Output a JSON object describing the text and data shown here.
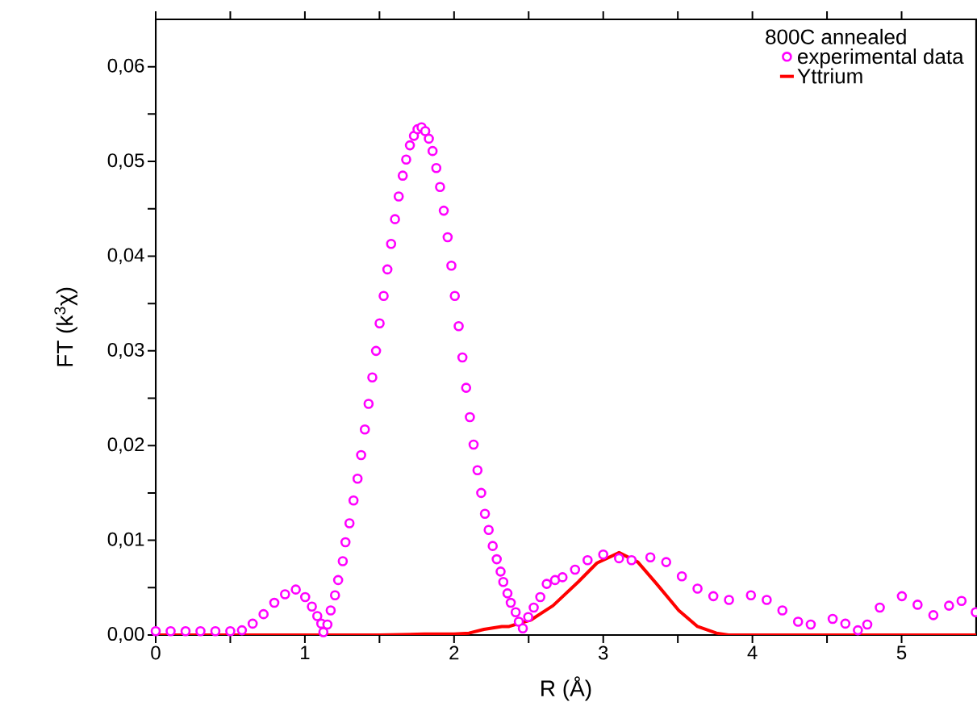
{
  "chart_data": {
    "type": "scatter",
    "xlabel": "R (Å)",
    "ylabel": "FT (k$^{3}$χ)",
    "legend_title": "800C annealed",
    "legend": "top right",
    "xlim": [
      0,
      5.5
    ],
    "ylim": [
      0,
      0.065
    ],
    "xticks": [
      {
        "value": 0,
        "label": "0"
      },
      {
        "value": 0.5,
        "label": null
      },
      {
        "value": 1,
        "label": "1"
      },
      {
        "value": 1.5,
        "label": null
      },
      {
        "value": 2,
        "label": "2"
      },
      {
        "value": 2.5,
        "label": null
      },
      {
        "value": 3,
        "label": "3"
      },
      {
        "value": 3.5,
        "label": null
      },
      {
        "value": 4,
        "label": "4"
      },
      {
        "value": 4.5,
        "label": null
      },
      {
        "value": 5,
        "label": "5"
      }
    ],
    "yticks": [
      {
        "value": 0,
        "label": "0,00"
      },
      {
        "value": 0.005,
        "label": null
      },
      {
        "value": 0.01,
        "label": "0,01"
      },
      {
        "value": 0.015,
        "label": null
      },
      {
        "value": 0.02,
        "label": "0,02"
      },
      {
        "value": 0.025,
        "label": null
      },
      {
        "value": 0.03,
        "label": "0,03"
      },
      {
        "value": 0.035,
        "label": null
      },
      {
        "value": 0.04,
        "label": "0,04"
      },
      {
        "value": 0.045,
        "label": null
      },
      {
        "value": 0.05,
        "label": "0,05"
      },
      {
        "value": 0.055,
        "label": null
      },
      {
        "value": 0.06,
        "label": "0,06"
      }
    ],
    "series": [
      {
        "name": "experimental data",
        "marker": "circle",
        "color": "#ff00ff",
        "x": [
          0,
          0.1,
          0.2,
          0.3,
          0.4,
          0.5,
          0.578,
          0.65,
          0.723,
          0.795,
          0.867,
          0.939,
          1.002,
          1.047,
          1.083,
          1.11,
          1.124,
          1.151,
          1.173,
          1.202,
          1.223,
          1.254,
          1.272,
          1.299,
          1.326,
          1.353,
          1.377,
          1.402,
          1.427,
          1.452,
          1.477,
          1.501,
          1.528,
          1.553,
          1.578,
          1.604,
          1.629,
          1.656,
          1.679,
          1.704,
          1.731,
          1.755,
          1.782,
          1.807,
          1.831,
          1.856,
          1.881,
          1.906,
          1.931,
          1.957,
          1.982,
          2.005,
          2.031,
          2.056,
          2.081,
          2.106,
          2.131,
          2.157,
          2.182,
          2.207,
          2.232,
          2.259,
          2.286,
          2.312,
          2.33,
          2.358,
          2.38,
          2.413,
          2.434,
          2.461,
          2.497,
          2.534,
          2.578,
          2.621,
          2.677,
          2.727,
          2.811,
          2.895,
          3.0,
          3.106,
          3.19,
          3.316,
          3.422,
          3.527,
          3.632,
          3.738,
          3.843,
          3.99,
          4.096,
          4.201,
          4.306,
          4.391,
          4.538,
          4.623,
          4.707,
          4.77,
          4.854,
          5.002,
          5.107,
          5.213,
          5.318,
          5.402,
          5.497
        ],
        "values": [
          0.0004,
          0.0004,
          0.0004,
          0.0004,
          0.0004,
          0.0004,
          0.0005,
          0.0012,
          0.0022,
          0.0034,
          0.0043,
          0.0048,
          0.004,
          0.003,
          0.002,
          0.0012,
          0.0003,
          0.0011,
          0.0026,
          0.0042,
          0.0058,
          0.0078,
          0.0098,
          0.0118,
          0.0142,
          0.0165,
          0.019,
          0.0217,
          0.0244,
          0.0272,
          0.03,
          0.0329,
          0.0358,
          0.0386,
          0.0413,
          0.0439,
          0.0463,
          0.0485,
          0.0502,
          0.0517,
          0.0527,
          0.0534,
          0.0536,
          0.0532,
          0.0524,
          0.0511,
          0.0493,
          0.0473,
          0.0448,
          0.042,
          0.039,
          0.0358,
          0.0326,
          0.0293,
          0.0261,
          0.023,
          0.0201,
          0.0174,
          0.015,
          0.0128,
          0.0111,
          0.0094,
          0.008,
          0.0067,
          0.0056,
          0.0044,
          0.0034,
          0.0024,
          0.0014,
          0.0007,
          0.0019,
          0.0029,
          0.004,
          0.0054,
          0.0058,
          0.0061,
          0.0069,
          0.0079,
          0.0085,
          0.0081,
          0.0079,
          0.0082,
          0.0077,
          0.0062,
          0.0049,
          0.0041,
          0.0037,
          0.0042,
          0.0037,
          0.0026,
          0.0014,
          0.0011,
          0.0017,
          0.0012,
          0.0005,
          0.0011,
          0.0029,
          0.0041,
          0.0032,
          0.0021,
          0.0031,
          0.0036,
          0.0024
        ]
      },
      {
        "name": "Yttrium",
        "type": "line",
        "marker": "none",
        "color": "#ff0000",
        "x": [
          0,
          1.0,
          1.5,
          1.8,
          2.0,
          2.1,
          2.2,
          2.32,
          2.369,
          2.45,
          2.516,
          2.663,
          2.832,
          2.958,
          3.106,
          3.232,
          3.358,
          3.506,
          3.632,
          3.759,
          3.84,
          4.5,
          5.5
        ],
        "values": [
          0,
          0,
          0,
          0.0001,
          0.0001,
          0.0002,
          0.0006,
          0.0009,
          0.0009,
          0.0013,
          0.0016,
          0.0031,
          0.0056,
          0.0076,
          0.0087,
          0.0077,
          0.0054,
          0.0026,
          0.0009,
          0.0002,
          0,
          0,
          0
        ]
      }
    ]
  }
}
